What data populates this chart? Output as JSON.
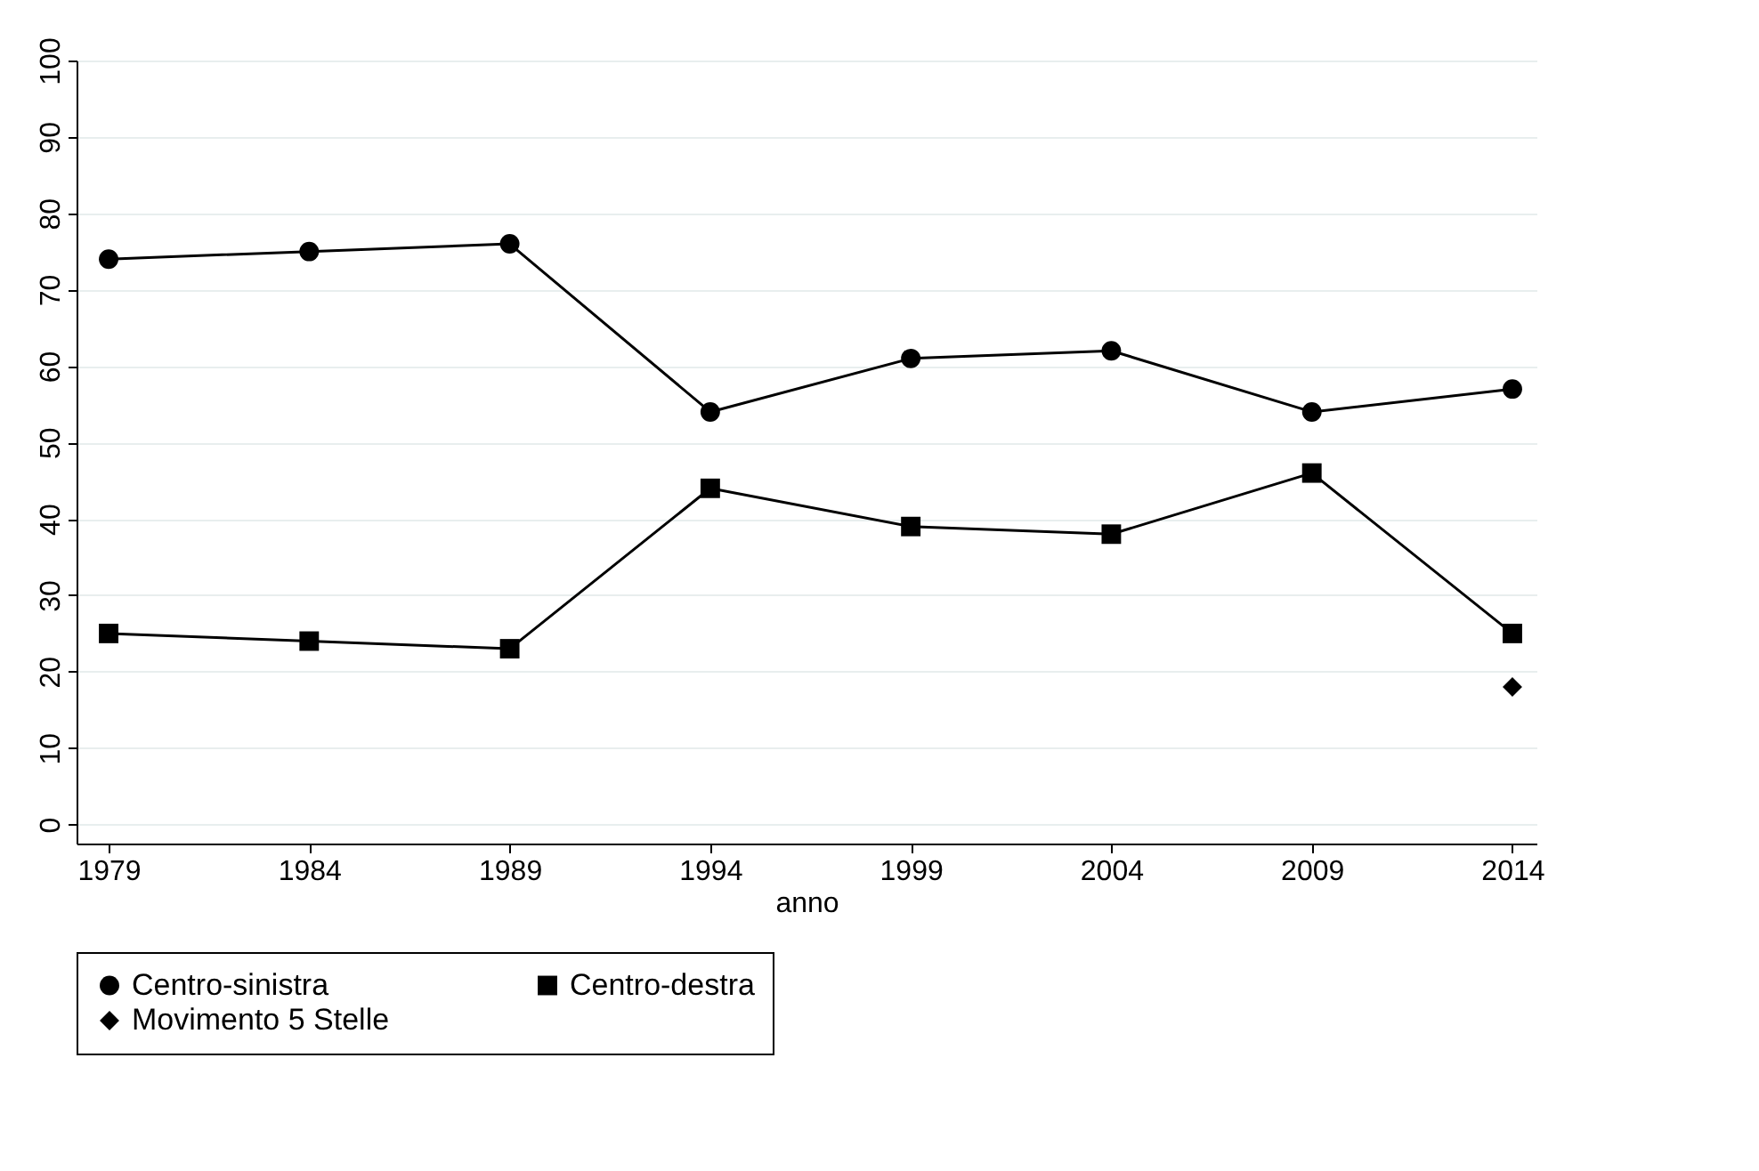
{
  "chart_data": {
    "type": "line",
    "xlabel": "anno",
    "x": [
      1979,
      1984,
      1989,
      1994,
      1999,
      2004,
      2009,
      2014
    ],
    "series": [
      {
        "name": "Centro-sinistra",
        "color": "#000000",
        "marker": "circle",
        "values": [
          74,
          75,
          76,
          54,
          61,
          62,
          54,
          57
        ]
      },
      {
        "name": "Centro-destra",
        "color": "#000000",
        "marker": "square",
        "values": [
          25,
          24,
          23,
          44,
          39,
          38,
          46,
          25
        ]
      },
      {
        "name": "Movimento 5 Stelle",
        "color": "#000000",
        "marker": "diamond",
        "x": [
          2014
        ],
        "values": [
          18
        ]
      }
    ],
    "xlim": [
      1978.2,
      2014.6
    ],
    "xticks": [
      1979,
      1984,
      1989,
      1994,
      1999,
      2004,
      2009,
      2014
    ],
    "ylim": [
      -2.5,
      100
    ],
    "yticks": [
      0,
      10,
      20,
      30,
      40,
      50,
      60,
      70,
      80,
      90,
      100
    ],
    "grid": "y",
    "legend": "bottom",
    "line_style": "solid"
  }
}
